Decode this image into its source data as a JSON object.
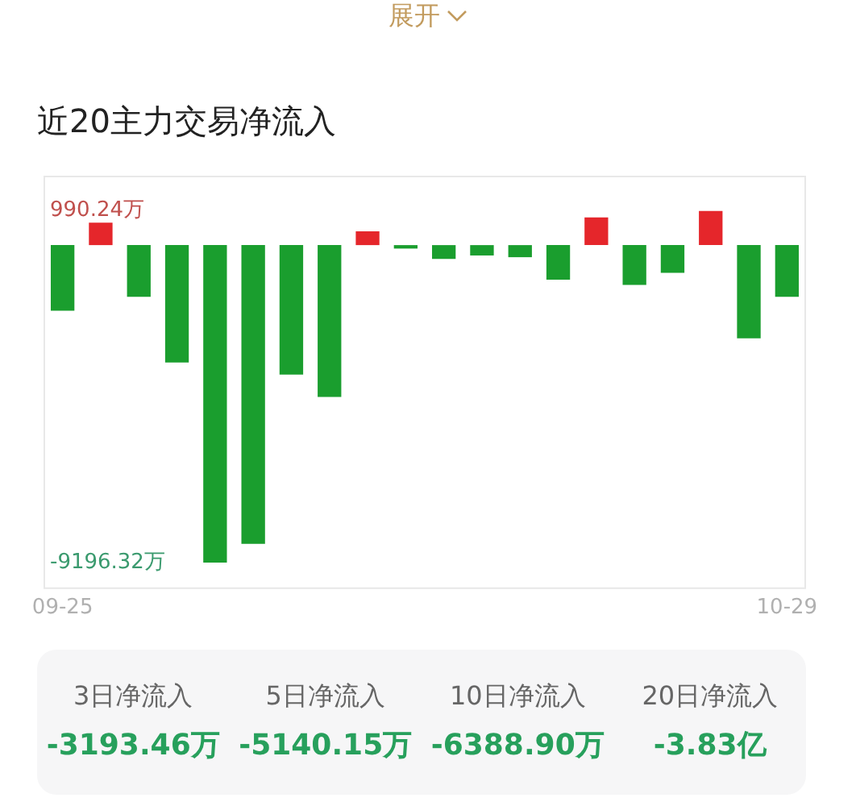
{
  "chart_data": {
    "type": "bar",
    "title": "近20主力交易净流入",
    "categories": [
      "09-25",
      null,
      null,
      null,
      null,
      null,
      null,
      null,
      null,
      null,
      null,
      null,
      null,
      null,
      null,
      null,
      null,
      null,
      null,
      "10-29"
    ],
    "values": [
      -1900,
      650,
      -1500,
      -3400,
      -9196.32,
      -8650,
      -3750,
      -4400,
      400,
      -100,
      -400,
      -300,
      -350,
      -1000,
      800,
      -1150,
      -800,
      990.24,
      -2700,
      -1500
    ],
    "colors": [
      "#1a9e2e",
      "#e5262b",
      "#1a9e2e",
      "#1a9e2e",
      "#1a9e2e",
      "#1a9e2e",
      "#1a9e2e",
      "#1a9e2e",
      "#e5262b",
      "#1a9e2e",
      "#1a9e2e",
      "#1a9e2e",
      "#1a9e2e",
      "#1a9e2e",
      "#e5262b",
      "#1a9e2e",
      "#1a9e2e",
      "#e5262b",
      "#1a9e2e",
      "#1a9e2e"
    ],
    "ylim": [
      -9960,
      2010
    ],
    "yticks": [
      {
        "value": 990.24,
        "label": "990.24万"
      },
      {
        "value": -9196.32,
        "label": "-9196.32万"
      }
    ],
    "annotations": [
      "展开",
      "3日净流入",
      "-3193.46万",
      "5日净流入",
      "-5140.15万",
      "10日净流入",
      "-6388.90万",
      "20日净流入",
      "-3.83亿"
    ]
  }
}
